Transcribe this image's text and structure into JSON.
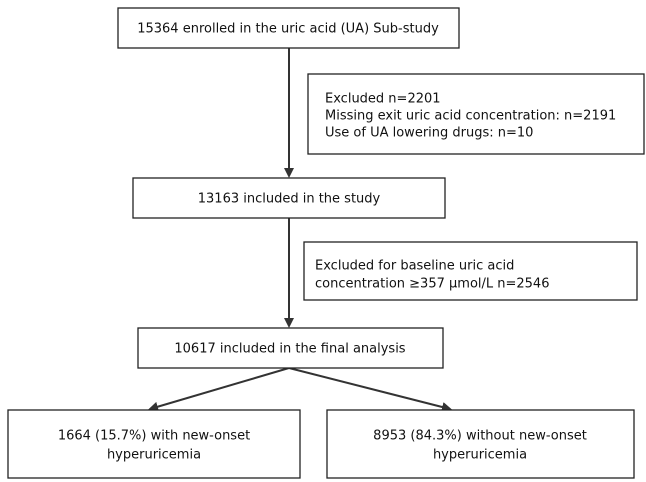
{
  "nodes": [
    {
      "lines": [
        "15364 enrolled in the uric acid (UA) Sub-study"
      ]
    },
    {
      "lines": [
        "Excluded n=2201",
        "Missing exit uric acid concentration: n=2191",
        "Use of UA lowering drugs: n=10"
      ]
    },
    {
      "lines": [
        "13163 included in the study"
      ]
    },
    {
      "lines": [
        "Excluded for baseline uric acid",
        "concentration ≥357 μmol/L n=2546"
      ]
    },
    {
      "lines": [
        "10617 included in the final analysis"
      ]
    },
    {
      "lines": [
        "1664 (15.7%) with new-onset",
        "hyperuricemia"
      ]
    },
    {
      "lines": [
        "8953 (84.3%) without new-onset",
        "hyperuricemia"
      ]
    }
  ]
}
